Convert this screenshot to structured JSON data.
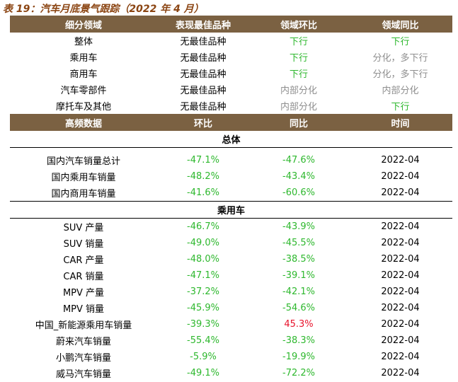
{
  "title": "表 19：汽车月底景气跟踪（2022 年 4 月）",
  "table1": {
    "headers": [
      "细分领域",
      "表现最佳品种",
      "领域环比",
      "领域同比"
    ],
    "rows": [
      {
        "domain": "整体",
        "best": "无最佳品种",
        "mom": "下行",
        "yoy": "下行"
      },
      {
        "domain": "乘用车",
        "best": "无最佳品种",
        "mom": "下行",
        "yoy": "分化，多下行"
      },
      {
        "domain": "商用车",
        "best": "无最佳品种",
        "mom": "下行",
        "yoy": "分化，多下行"
      },
      {
        "domain": "汽车零部件",
        "best": "无最佳品种",
        "mom": "内部分化",
        "yoy": "内部分化"
      },
      {
        "domain": "摩托车及其他",
        "best": "无最佳品种",
        "mom": "内部分化",
        "yoy": "下行"
      }
    ]
  },
  "table2": {
    "headers": [
      "高频数据",
      "环比",
      "同比",
      "时间"
    ],
    "section_overall": "总体",
    "overall_rows": [
      {
        "name": "国内汽车销量总计",
        "mom": "-47.1%",
        "yoy": "-47.6%",
        "time": "2022-04"
      },
      {
        "name": "国内乘用车销量",
        "mom": "-48.2%",
        "yoy": "-43.4%",
        "time": "2022-04"
      },
      {
        "name": "国内商用车销量",
        "mom": "-41.6%",
        "yoy": "-60.6%",
        "time": "2022-04"
      }
    ],
    "section_passenger": "乘用车",
    "passenger_rows": [
      {
        "name": "SUV 产量",
        "mom": "-46.7%",
        "yoy": "-43.9%",
        "time": "2022-04"
      },
      {
        "name": "SUV 销量",
        "mom": "-49.0%",
        "yoy": "-45.5%",
        "time": "2022-04"
      },
      {
        "name": "CAR 产量",
        "mom": "-48.0%",
        "yoy": "-38.5%",
        "time": "2022-04"
      },
      {
        "name": "CAR 销量",
        "mom": "-47.1%",
        "yoy": "-39.1%",
        "time": "2022-04"
      },
      {
        "name": "MPV 产量",
        "mom": "-37.2%",
        "yoy": "-42.1%",
        "time": "2022-04"
      },
      {
        "name": "MPV 销量",
        "mom": "-45.9%",
        "yoy": "-54.6%",
        "time": "2022-04"
      },
      {
        "name": "中国_新能源乘用车销量",
        "mom": "-39.3%",
        "yoy": "45.3%",
        "time": "2022-04"
      },
      {
        "name": "蔚来汽车销量",
        "mom": "-55.4%",
        "yoy": "-38.3%",
        "time": "2022-04"
      },
      {
        "name": "小鹏汽车销量",
        "mom": "-5.9%",
        "yoy": "-19.9%",
        "time": "2022-04"
      },
      {
        "name": "威马汽车销量",
        "mom": "-49.1%",
        "yoy": "-72.2%",
        "time": "2022-04"
      }
    ]
  },
  "colors": {
    "header_bg": "#7b6142",
    "title": "#8B4513",
    "down": "#2eb82e",
    "up": "#e8132b",
    "mixed": "#8f8f8f"
  }
}
